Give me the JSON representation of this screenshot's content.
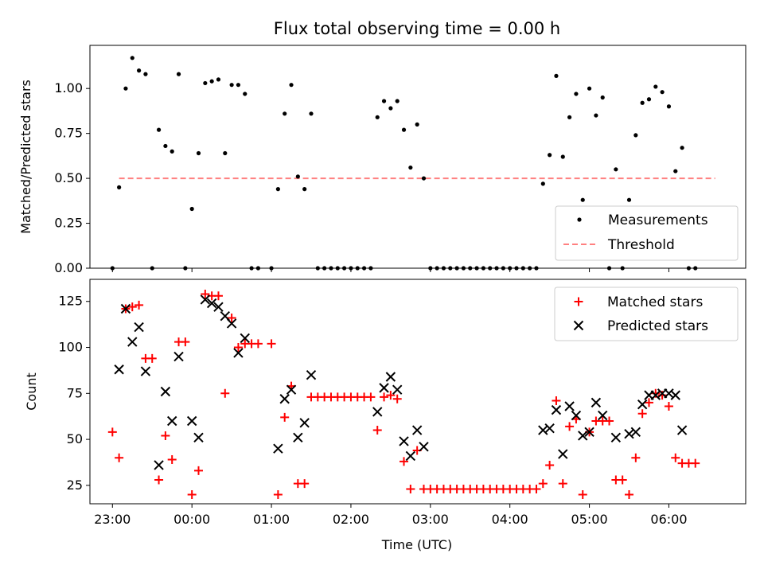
{
  "figure": {
    "title": "Flux total observing time = 0.00 h"
  },
  "colors": {
    "measurements": "#000000",
    "threshold": "#ff8080",
    "matched": "#ff0000",
    "predicted": "#000000"
  },
  "chart_data": [
    {
      "type": "scatter",
      "title": "Flux total observing time = 0.00 h",
      "xlabel": "",
      "ylabel": "Matched/Predicted stars",
      "xlim": [
        "22:43",
        "06:58"
      ],
      "ylim": [
        0,
        1.24
      ],
      "yticks": [
        0.0,
        0.25,
        0.5,
        0.75,
        1.0
      ],
      "ytick_labels": [
        "0.00",
        "0.25",
        "0.50",
        "0.75",
        "1.00"
      ],
      "legend": {
        "placement": "lower right",
        "entries": [
          "Measurements",
          "Threshold"
        ]
      },
      "threshold": {
        "name": "Threshold",
        "y": 0.5,
        "x_start": "23:05",
        "x_end": "06:35"
      },
      "series": [
        {
          "name": "Measurements",
          "marker": "dot",
          "points": [
            [
              "23:00",
              0
            ],
            [
              "23:05",
              0.45
            ],
            [
              "23:10",
              1.0
            ],
            [
              "23:15",
              1.17
            ],
            [
              "23:20",
              1.1
            ],
            [
              "23:25",
              1.08
            ],
            [
              "23:30",
              0
            ],
            [
              "23:35",
              0.77
            ],
            [
              "23:40",
              0.68
            ],
            [
              "23:45",
              0.65
            ],
            [
              "23:50",
              1.08
            ],
            [
              "23:55",
              0
            ],
            [
              "00:00",
              0.33
            ],
            [
              "00:05",
              0.64
            ],
            [
              "00:10",
              1.03
            ],
            [
              "00:15",
              1.04
            ],
            [
              "00:20",
              1.05
            ],
            [
              "00:25",
              0.64
            ],
            [
              "00:30",
              1.02
            ],
            [
              "00:35",
              1.02
            ],
            [
              "00:40",
              0.97
            ],
            [
              "00:45",
              0
            ],
            [
              "00:50",
              0
            ],
            [
              "01:00",
              0
            ],
            [
              "01:05",
              0.44
            ],
            [
              "01:10",
              0.86
            ],
            [
              "01:15",
              1.02
            ],
            [
              "01:20",
              0.51
            ],
            [
              "01:25",
              0.44
            ],
            [
              "01:30",
              0.86
            ],
            [
              "01:35",
              0
            ],
            [
              "01:40",
              0
            ],
            [
              "01:45",
              0
            ],
            [
              "01:50",
              0
            ],
            [
              "01:55",
              0
            ],
            [
              "02:00",
              0
            ],
            [
              "02:05",
              0
            ],
            [
              "02:10",
              0
            ],
            [
              "02:15",
              0
            ],
            [
              "02:20",
              0.84
            ],
            [
              "02:25",
              0.93
            ],
            [
              "02:30",
              0.89
            ],
            [
              "02:35",
              0.93
            ],
            [
              "02:40",
              0.77
            ],
            [
              "02:45",
              0.56
            ],
            [
              "02:50",
              0.8
            ],
            [
              "02:55",
              0.5
            ],
            [
              "03:00",
              0
            ],
            [
              "03:05",
              0
            ],
            [
              "03:10",
              0
            ],
            [
              "03:15",
              0
            ],
            [
              "03:20",
              0
            ],
            [
              "03:25",
              0
            ],
            [
              "03:30",
              0
            ],
            [
              "03:35",
              0
            ],
            [
              "03:40",
              0
            ],
            [
              "03:45",
              0
            ],
            [
              "03:50",
              0
            ],
            [
              "03:55",
              0
            ],
            [
              "04:00",
              0
            ],
            [
              "04:05",
              0
            ],
            [
              "04:10",
              0
            ],
            [
              "04:15",
              0
            ],
            [
              "04:20",
              0
            ],
            [
              "04:25",
              0.47
            ],
            [
              "04:30",
              0.63
            ],
            [
              "04:35",
              1.07
            ],
            [
              "04:40",
              0.62
            ],
            [
              "04:45",
              0.84
            ],
            [
              "04:50",
              0.97
            ],
            [
              "04:55",
              0.38
            ],
            [
              "05:00",
              1.0
            ],
            [
              "05:05",
              0.85
            ],
            [
              "05:10",
              0.95
            ],
            [
              "05:15",
              0
            ],
            [
              "05:20",
              0.55
            ],
            [
              "05:25",
              0
            ],
            [
              "05:30",
              0.38
            ],
            [
              "05:35",
              0.74
            ],
            [
              "05:40",
              0.92
            ],
            [
              "05:45",
              0.94
            ],
            [
              "05:50",
              1.01
            ],
            [
              "05:55",
              0.98
            ],
            [
              "06:00",
              0.9
            ],
            [
              "06:05",
              0.54
            ],
            [
              "06:10",
              0.67
            ],
            [
              "06:15",
              0
            ],
            [
              "06:20",
              0
            ]
          ]
        }
      ]
    },
    {
      "type": "scatter",
      "title": "",
      "xlabel": "Time (UTC)",
      "ylabel": "Count",
      "xlim": [
        "22:43",
        "06:58"
      ],
      "ylim": [
        15,
        137
      ],
      "yticks": [
        25,
        50,
        75,
        100,
        125
      ],
      "ytick_labels": [
        "25",
        "50",
        "75",
        "100",
        "125"
      ],
      "xticks": [
        "23:00",
        "00:00",
        "01:00",
        "02:00",
        "03:00",
        "04:00",
        "05:00",
        "06:00"
      ],
      "legend": {
        "placement": "upper right",
        "entries": [
          "Matched stars",
          "Predicted stars"
        ]
      },
      "series": [
        {
          "name": "Matched stars",
          "marker": "plus",
          "points": [
            [
              "23:00",
              54
            ],
            [
              "23:05",
              40
            ],
            [
              "23:10",
              121
            ],
            [
              "23:15",
              122
            ],
            [
              "23:20",
              123
            ],
            [
              "23:25",
              94
            ],
            [
              "23:30",
              94
            ],
            [
              "23:35",
              28
            ],
            [
              "23:40",
              52
            ],
            [
              "23:45",
              39
            ],
            [
              "23:50",
              103
            ],
            [
              "23:55",
              103
            ],
            [
              "00:00",
              20
            ],
            [
              "00:05",
              33
            ],
            [
              "00:10",
              129
            ],
            [
              "00:15",
              128
            ],
            [
              "00:20",
              128
            ],
            [
              "00:25",
              75
            ],
            [
              "00:30",
              116
            ],
            [
              "00:35",
              100
            ],
            [
              "00:40",
              102
            ],
            [
              "00:45",
              102
            ],
            [
              "00:50",
              102
            ],
            [
              "01:00",
              102
            ],
            [
              "01:05",
              20
            ],
            [
              "01:10",
              62
            ],
            [
              "01:15",
              79
            ],
            [
              "01:20",
              26
            ],
            [
              "01:25",
              26
            ],
            [
              "01:30",
              73
            ],
            [
              "01:35",
              73
            ],
            [
              "01:40",
              73
            ],
            [
              "01:45",
              73
            ],
            [
              "01:50",
              73
            ],
            [
              "01:55",
              73
            ],
            [
              "02:00",
              73
            ],
            [
              "02:05",
              73
            ],
            [
              "02:10",
              73
            ],
            [
              "02:15",
              73
            ],
            [
              "02:20",
              55
            ],
            [
              "02:25",
              73
            ],
            [
              "02:30",
              74
            ],
            [
              "02:35",
              72
            ],
            [
              "02:40",
              38
            ],
            [
              "02:45",
              23
            ],
            [
              "02:50",
              44
            ],
            [
              "02:55",
              23
            ],
            [
              "03:00",
              23
            ],
            [
              "03:05",
              23
            ],
            [
              "03:10",
              23
            ],
            [
              "03:15",
              23
            ],
            [
              "03:20",
              23
            ],
            [
              "03:25",
              23
            ],
            [
              "03:30",
              23
            ],
            [
              "03:35",
              23
            ],
            [
              "03:40",
              23
            ],
            [
              "03:45",
              23
            ],
            [
              "03:50",
              23
            ],
            [
              "03:55",
              23
            ],
            [
              "04:00",
              23
            ],
            [
              "04:05",
              23
            ],
            [
              "04:10",
              23
            ],
            [
              "04:15",
              23
            ],
            [
              "04:20",
              23
            ],
            [
              "04:25",
              26
            ],
            [
              "04:30",
              36
            ],
            [
              "04:35",
              71
            ],
            [
              "04:40",
              26
            ],
            [
              "04:45",
              57
            ],
            [
              "04:50",
              61
            ],
            [
              "04:55",
              20
            ],
            [
              "05:00",
              54
            ],
            [
              "05:05",
              60
            ],
            [
              "05:10",
              60
            ],
            [
              "05:15",
              60
            ],
            [
              "05:20",
              28
            ],
            [
              "05:25",
              28
            ],
            [
              "05:30",
              20
            ],
            [
              "05:35",
              40
            ],
            [
              "05:40",
              64
            ],
            [
              "05:45",
              70
            ],
            [
              "05:50",
              75
            ],
            [
              "05:55",
              74
            ],
            [
              "06:00",
              68
            ],
            [
              "06:05",
              40
            ],
            [
              "06:10",
              37
            ],
            [
              "06:15",
              37
            ],
            [
              "06:20",
              37
            ]
          ]
        },
        {
          "name": "Predicted stars",
          "marker": "x",
          "points": [
            [
              "23:05",
              88
            ],
            [
              "23:10",
              121
            ],
            [
              "23:15",
              103
            ],
            [
              "23:20",
              111
            ],
            [
              "23:25",
              87
            ],
            [
              "23:35",
              36
            ],
            [
              "23:40",
              76
            ],
            [
              "23:45",
              60
            ],
            [
              "23:50",
              95
            ],
            [
              "00:00",
              60
            ],
            [
              "00:05",
              51
            ],
            [
              "00:10",
              126
            ],
            [
              "00:15",
              124
            ],
            [
              "00:20",
              122
            ],
            [
              "00:25",
              117
            ],
            [
              "00:30",
              113
            ],
            [
              "00:35",
              97
            ],
            [
              "00:40",
              105
            ],
            [
              "01:05",
              45
            ],
            [
              "01:10",
              72
            ],
            [
              "01:15",
              77
            ],
            [
              "01:20",
              51
            ],
            [
              "01:25",
              59
            ],
            [
              "01:30",
              85
            ],
            [
              "02:20",
              65
            ],
            [
              "02:25",
              78
            ],
            [
              "02:30",
              84
            ],
            [
              "02:35",
              77
            ],
            [
              "02:40",
              49
            ],
            [
              "02:45",
              41
            ],
            [
              "02:50",
              55
            ],
            [
              "02:55",
              46
            ],
            [
              "04:25",
              55
            ],
            [
              "04:30",
              56
            ],
            [
              "04:35",
              66
            ],
            [
              "04:40",
              42
            ],
            [
              "04:45",
              68
            ],
            [
              "04:50",
              63
            ],
            [
              "04:55",
              52
            ],
            [
              "05:00",
              54
            ],
            [
              "05:05",
              70
            ],
            [
              "05:10",
              63
            ],
            [
              "05:20",
              51
            ],
            [
              "05:30",
              53
            ],
            [
              "05:35",
              54
            ],
            [
              "05:40",
              69
            ],
            [
              "05:45",
              74
            ],
            [
              "05:50",
              74
            ],
            [
              "05:55",
              75
            ],
            [
              "06:00",
              75
            ],
            [
              "06:05",
              74
            ],
            [
              "06:10",
              55
            ]
          ]
        }
      ]
    }
  ]
}
